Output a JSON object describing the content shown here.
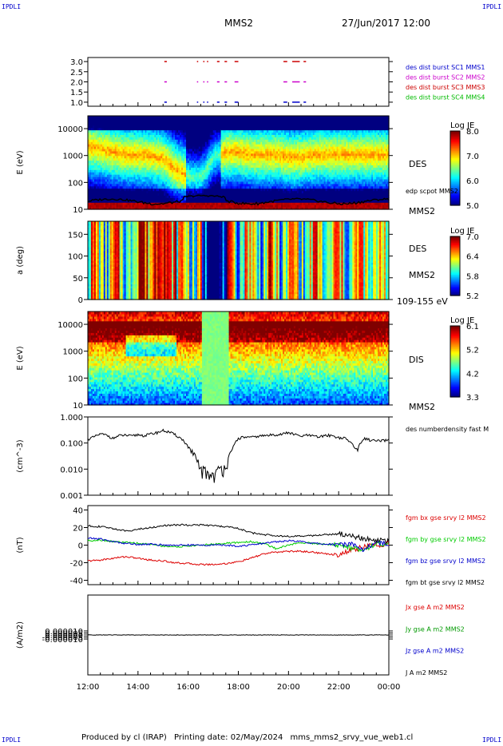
{
  "corner_label": "IPDLI",
  "header": {
    "spacecraft": "MMS2",
    "datetime": "27/Jun/2017 12:00"
  },
  "footer": {
    "produced": "Produced by cl (IRAP)",
    "printing": "Printing date: 02/May/2024",
    "script": "mms_mms2_srvy_vue_web1.cl"
  },
  "chart_data": [
    {
      "id": "panel1",
      "type": "scatter",
      "ylim": [
        0.8,
        3.2
      ],
      "yticks": [
        "3.0",
        "2.5",
        "2.0",
        "1.5",
        "1.0"
      ],
      "yticks_values": [
        3.0,
        2.5,
        2.0,
        1.5,
        1.0
      ],
      "legend": [
        {
          "text": "des dist burst SC1 MMS1",
          "color": "#0000cc"
        },
        {
          "text": "des dist burst SC2 MMS2",
          "color": "#cc00cc"
        },
        {
          "text": "des dist burst SC3 MMS3",
          "color": "#cc0000"
        },
        {
          "text": "des dist burst SC4 MMS4",
          "color": "#00bb00"
        }
      ],
      "series": [
        {
          "level": 3.0,
          "color": "#cc0000",
          "intervals_h": [
            [
              3.05,
              3.15
            ],
            [
              4.35,
              4.4
            ],
            [
              4.6,
              4.65
            ],
            [
              4.75,
              4.8
            ],
            [
              5.15,
              5.25
            ],
            [
              5.45,
              5.55
            ],
            [
              5.85,
              6.0
            ],
            [
              7.8,
              7.95
            ],
            [
              8.15,
              8.45
            ],
            [
              8.6,
              8.7
            ]
          ]
        },
        {
          "level": 2.0,
          "color": "#cc00cc",
          "intervals_h": [
            [
              3.05,
              3.15
            ],
            [
              4.35,
              4.4
            ],
            [
              4.6,
              4.65
            ],
            [
              4.75,
              4.8
            ],
            [
              5.15,
              5.25
            ],
            [
              5.45,
              5.55
            ],
            [
              5.85,
              6.0
            ],
            [
              7.8,
              7.95
            ],
            [
              8.15,
              8.45
            ],
            [
              8.6,
              8.7
            ]
          ]
        },
        {
          "level": 1.0,
          "color": "#0000cc",
          "intervals_h": [
            [
              3.05,
              3.15
            ],
            [
              4.35,
              4.4
            ],
            [
              4.6,
              4.65
            ],
            [
              4.75,
              4.8
            ],
            [
              5.15,
              5.25
            ],
            [
              5.45,
              5.55
            ],
            [
              5.85,
              6.0
            ],
            [
              7.8,
              7.95
            ],
            [
              8.15,
              8.45
            ],
            [
              8.6,
              8.7
            ]
          ]
        }
      ]
    },
    {
      "id": "panel2",
      "type": "heatmap",
      "ylabel": "E (eV)",
      "yscale": "log",
      "ylim": [
        10,
        30000
      ],
      "yticks": [
        "10000",
        "1000",
        "100",
        "10"
      ],
      "yticks_values": [
        10000,
        1000,
        100,
        10
      ],
      "right_labels": [
        "DES",
        "MMS2"
      ],
      "overlay_label": "edp scpot MMS2",
      "colorbar": {
        "title": "Log JE",
        "ticks": [
          "8.0",
          "7.0",
          "6.0",
          "5.0"
        ],
        "range": [
          5.0,
          8.2
        ]
      },
      "peak_energy_log10_by_hour": [
        3.3,
        3.2,
        3.1,
        3.0,
        3.0,
        2.95,
        2.85,
        2.4,
        2.2,
        2.2,
        2.9,
        3.1,
        3.1,
        3.0,
        3.0,
        3.0,
        2.9,
        2.9,
        3.0,
        3.0,
        3.0,
        3.0,
        3.0,
        3.0,
        3.0
      ]
    },
    {
      "id": "panel3",
      "type": "heatmap",
      "ylabel": "a (deg)",
      "ylim": [
        0,
        180
      ],
      "yticks": [
        "150",
        "100",
        "50",
        "0"
      ],
      "yticks_values": [
        150,
        100,
        50,
        0
      ],
      "right_labels": [
        "DES",
        "MMS2",
        "109-155 eV"
      ],
      "colorbar": {
        "title": "Log JE",
        "ticks": [
          "7.0",
          "6.4",
          "5.8",
          "5.2"
        ],
        "range": [
          5.2,
          7.1
        ]
      }
    },
    {
      "id": "panel4",
      "type": "heatmap",
      "ylabel": "E (eV)",
      "yscale": "log",
      "ylim": [
        10,
        30000
      ],
      "yticks": [
        "10000",
        "1000",
        "100",
        "10"
      ],
      "yticks_values": [
        10000,
        1000,
        100,
        10
      ],
      "right_labels": [
        "DIS",
        "MMS2"
      ],
      "colorbar": {
        "title": "Log JE",
        "ticks": [
          "6.1",
          "5.2",
          "4.2",
          "3.3"
        ],
        "range": [
          3.3,
          6.2
        ]
      }
    },
    {
      "id": "panel5",
      "type": "line",
      "ylabel": "(cm^-3)",
      "yscale": "log",
      "ylim": [
        0.001,
        1.0
      ],
      "yticks": [
        "1.000",
        "0.100",
        "0.010",
        "0.001"
      ],
      "yticks_values": [
        1.0,
        0.1,
        0.01,
        0.001
      ],
      "legend": [
        {
          "text": "des numberdensity fast M",
          "color": "#000000"
        }
      ],
      "series": [
        {
          "name": "des numberdensity fast M",
          "color": "#000000",
          "x_h": [
            0,
            0.25,
            0.5,
            0.75,
            1.0,
            1.25,
            1.5,
            1.75,
            2.0,
            2.25,
            2.5,
            2.75,
            3.0,
            3.25,
            3.5,
            3.75,
            4.0,
            4.25,
            4.5,
            4.75,
            5.0,
            5.25,
            5.5,
            5.75,
            6.0,
            6.25,
            6.5,
            6.75,
            7.0,
            7.25,
            7.5,
            7.75,
            8.0,
            8.25,
            8.5,
            8.75,
            9.0,
            9.25,
            9.5,
            9.75,
            10.0,
            10.25,
            10.5,
            10.75,
            11.0,
            11.25,
            11.5,
            11.75,
            12.0
          ],
          "y": [
            0.14,
            0.17,
            0.22,
            0.2,
            0.15,
            0.19,
            0.2,
            0.18,
            0.21,
            0.19,
            0.22,
            0.25,
            0.3,
            0.26,
            0.2,
            0.14,
            0.07,
            0.025,
            0.01,
            0.007,
            0.006,
            0.009,
            0.015,
            0.05,
            0.15,
            0.17,
            0.16,
            0.18,
            0.19,
            0.2,
            0.21,
            0.22,
            0.25,
            0.21,
            0.18,
            0.2,
            0.18,
            0.17,
            0.2,
            0.19,
            0.16,
            0.15,
            0.1,
            0.05,
            0.15,
            0.13,
            0.12,
            0.12,
            0.13
          ]
        }
      ]
    },
    {
      "id": "panel6",
      "type": "line",
      "ylabel": "(nT)",
      "ylim": [
        -45,
        45
      ],
      "yticks": [
        "40",
        "20",
        "0",
        "-20",
        "-40"
      ],
      "yticks_values": [
        40,
        20,
        0,
        -20,
        -40
      ],
      "legend": [
        {
          "text": "fgm bx gse srvy l2 MMS2",
          "color": "#dd0000"
        },
        {
          "text": "fgm by gse srvy l2 MMS2",
          "color": "#00cc00"
        },
        {
          "text": "fgm bz gse srvy l2 MMS2",
          "color": "#0000cc"
        },
        {
          "text": "fgm bt gse srvy l2 MMS2",
          "color": "#000000"
        }
      ],
      "series": [
        {
          "name": "fgm bx gse srvy l2 MMS2",
          "color": "#dd0000",
          "x_h": [
            0,
            0.5,
            1.0,
            1.5,
            2.0,
            2.5,
            3.0,
            3.5,
            4.0,
            4.5,
            5.0,
            5.5,
            6.0,
            6.5,
            7.0,
            7.5,
            8.0,
            8.5,
            9.0,
            9.5,
            10.0,
            10.5,
            11.0,
            11.5,
            12.0
          ],
          "y": [
            -18,
            -17,
            -15,
            -13,
            -15,
            -17,
            -18,
            -20,
            -21,
            -22,
            -22,
            -21,
            -19,
            -15,
            -10,
            -8,
            -7,
            -7,
            -8,
            -10,
            -11,
            -6,
            -2,
            0,
            2
          ]
        },
        {
          "name": "fgm by gse srvy l2 MMS2",
          "color": "#00cc00",
          "x_h": [
            0,
            0.5,
            1.0,
            1.5,
            2.0,
            2.5,
            3.0,
            3.5,
            4.0,
            4.5,
            5.0,
            5.5,
            6.0,
            6.5,
            7.0,
            7.5,
            8.0,
            8.5,
            9.0,
            9.5,
            10.0,
            10.5,
            11.0,
            11.5,
            12.0
          ],
          "y": [
            5,
            6,
            4,
            3,
            2,
            1,
            -1,
            -2,
            -1,
            0,
            1,
            2,
            3,
            4,
            2,
            -4,
            0,
            3,
            2,
            1,
            0,
            -3,
            -5,
            2,
            0
          ]
        },
        {
          "name": "fgm bz gse srvy l2 MMS2",
          "color": "#0000cc",
          "x_h": [
            0,
            0.5,
            1.0,
            1.5,
            2.0,
            2.5,
            3.0,
            3.5,
            4.0,
            4.5,
            5.0,
            5.5,
            6.0,
            6.5,
            7.0,
            7.5,
            8.0,
            8.5,
            9.0,
            9.5,
            10.0,
            10.5,
            11.0,
            11.5,
            12.0
          ],
          "y": [
            8,
            7,
            4,
            2,
            1,
            1,
            0,
            0,
            0,
            0,
            0,
            0,
            -1,
            0,
            2,
            4,
            5,
            4,
            2,
            1,
            1,
            2,
            -5,
            3,
            1
          ]
        },
        {
          "name": "fgm bt gse srvy l2 MMS2",
          "color": "#000000",
          "x_h": [
            0,
            0.5,
            1.0,
            1.5,
            2.0,
            2.5,
            3.0,
            3.5,
            4.0,
            4.5,
            5.0,
            5.5,
            6.0,
            6.5,
            7.0,
            7.5,
            8.0,
            8.5,
            9.0,
            9.5,
            10.0,
            10.5,
            11.0,
            11.5,
            12.0
          ],
          "y": [
            22,
            21,
            19,
            16,
            18,
            20,
            22,
            23,
            23,
            23,
            22,
            21,
            19,
            14,
            12,
            11,
            10,
            10,
            11,
            12,
            13,
            11,
            7,
            6,
            4
          ]
        }
      ]
    },
    {
      "id": "panel7",
      "type": "line",
      "ylabel": "(A/m2)",
      "ylim": [
        -0.0001,
        0.0001
      ],
      "yticks": [
        "0.000010",
        "0.000005",
        "0.000000",
        "-0.000005",
        "-0.000010"
      ],
      "yticks_values": [
        1e-05,
        5e-06,
        0,
        -5e-06,
        -1e-05
      ],
      "xticks": [
        "12:00",
        "14:00",
        "16:00",
        "18:00",
        "20:00",
        "22:00",
        "00:00"
      ],
      "xticks_values_h": [
        0,
        2,
        4,
        6,
        8,
        10,
        12
      ],
      "legend": [
        {
          "text": "Jx gse A m2 MMS2",
          "color": "#dd0000"
        },
        {
          "text": "Jy gse A m2 MMS2",
          "color": "#009900"
        },
        {
          "text": "Jz gse A m2 MMS2",
          "color": "#0000cc"
        },
        {
          "text": "J A m2 MMS2",
          "color": "#000000"
        }
      ],
      "series": [
        {
          "name": "J A m2 MMS2",
          "color": "#000000",
          "x_h": [
            0,
            12
          ],
          "y": [
            0,
            0
          ]
        }
      ]
    }
  ]
}
